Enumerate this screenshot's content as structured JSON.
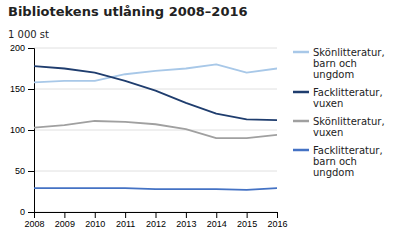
{
  "chart_data": {
    "type": "line",
    "title": "Bibliotekens utlåning 2008–2016",
    "y_label": "1 000 st",
    "x": [
      2008,
      2009,
      2010,
      2011,
      2012,
      2013,
      2014,
      2015,
      2016
    ],
    "series": [
      {
        "name": "Skönlitteratur,\nbarn och\nungdom",
        "color": "#a8c8e8",
        "values": [
          158,
          160,
          160,
          168,
          172,
          175,
          180,
          170,
          175
        ]
      },
      {
        "name": "Facklitteratur,\nvuxen",
        "color": "#1f3d6e",
        "values": [
          178,
          175,
          170,
          160,
          148,
          133,
          120,
          113,
          112
        ]
      },
      {
        "name": "Skönlitteratur,\nvuxen",
        "color": "#a0a0a0",
        "values": [
          103,
          106,
          111,
          110,
          107,
          101,
          90,
          90,
          94
        ]
      },
      {
        "name": "Facklitteratur,\nbarn och\nungdom",
        "color": "#4472c4",
        "values": [
          29,
          29,
          29,
          29,
          28,
          28,
          28,
          27,
          29
        ]
      }
    ],
    "xlim": [
      2008,
      2016
    ],
    "xticks": [
      2008,
      2009,
      2010,
      2011,
      2012,
      2013,
      2014,
      2015,
      2016
    ],
    "ylim": [
      0,
      200
    ],
    "yticks": [
      0,
      50,
      100,
      150,
      200
    ],
    "grid": "y",
    "legend": "right"
  }
}
